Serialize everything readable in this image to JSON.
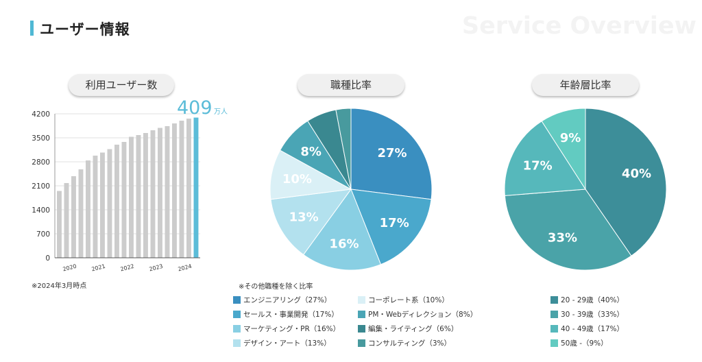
{
  "header": {
    "title": "ユーザー情報",
    "watermark": "Service Overview",
    "accent": "#4fb8d4"
  },
  "panels": {
    "users_title": "利用ユーザー数",
    "job_title": "職種比率",
    "age_title": "年齢層比率"
  },
  "notes": {
    "users_note": "※2024年3月時点",
    "job_note": "※その他職種を除く比率"
  },
  "chart_data": [
    {
      "type": "bar",
      "title": "利用ユーザー数",
      "y_ticks": [
        "0",
        "700",
        "1400",
        "2100",
        "2800",
        "3500",
        "4200"
      ],
      "ylim": [
        0,
        4200
      ],
      "x_tick_labels": [
        "2020",
        "2021",
        "2022",
        "2023",
        "2024"
      ],
      "values": [
        1950,
        2180,
        2380,
        2580,
        2840,
        2980,
        3070,
        3170,
        3300,
        3380,
        3530,
        3580,
        3640,
        3720,
        3790,
        3840,
        3920,
        4000,
        4060,
        4090
      ],
      "highlight": {
        "value_text": "409",
        "unit": "万人",
        "color": "#5bbcd8"
      },
      "bar_color": "#cccccc",
      "grid": true
    },
    {
      "type": "pie",
      "title": "職種比率",
      "slices": [
        {
          "label": "エンジニアリング（27%）",
          "value": 27,
          "text": "27%",
          "color": "#3a8fc0"
        },
        {
          "label": "セールス・事業開発（17%）",
          "value": 17,
          "text": "17%",
          "color": "#4aa8cc"
        },
        {
          "label": "マーケティング・PR（16%）",
          "value": 16,
          "text": "16%",
          "color": "#89cfe3"
        },
        {
          "label": "デザイン・アート（13%）",
          "value": 13,
          "text": "13%",
          "color": "#b3e1ee"
        },
        {
          "label": "コーポレート系（10%）",
          "value": 10,
          "text": "10%",
          "color": "#daf0f6"
        },
        {
          "label": "PM・Webディレクション（8%）",
          "value": 8,
          "text": "8%",
          "color": "#4aa5b5"
        },
        {
          "label": "編集・ライティング（6%）",
          "value": 6,
          "text": "",
          "color": "#3a8890"
        },
        {
          "label": "コンサルティング（3%）",
          "value": 3,
          "text": "",
          "color": "#489a9e"
        }
      ]
    },
    {
      "type": "pie",
      "title": "年齢層比率",
      "slices": [
        {
          "label": "20 - 29歳（40%）",
          "value": 40,
          "text": "40%",
          "color": "#3d8e99"
        },
        {
          "label": "30 - 39歳（33%）",
          "value": 33,
          "text": "33%",
          "color": "#4aa3a8"
        },
        {
          "label": "40 - 49歳（17%）",
          "value": 17,
          "text": "17%",
          "color": "#56b8bb"
        },
        {
          "label": "50歳 -（9%）",
          "value": 9,
          "text": "9%",
          "color": "#62cbc1"
        }
      ]
    }
  ]
}
